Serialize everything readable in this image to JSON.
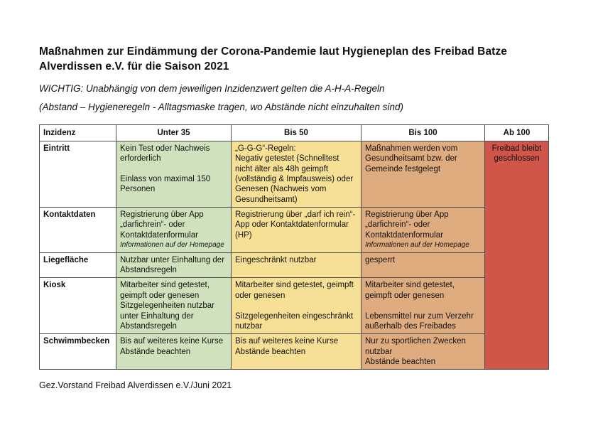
{
  "page": {
    "title": "Maßnahmen zur Eindämmung der Corona-Pandemie laut Hygieneplan des Freibad Batze Alverdissen e.V. für die Saison 2021",
    "important_line1": "WICHTIG: Unabhängig von dem jeweiligen Inzidenzwert gelten die A-H-A-Regeln",
    "important_line2": "(Abstand – Hygieneregeln - Alltagsmaske tragen, wo Abstände nicht einzuhalten sind)",
    "footer": "Gez.Vorstand Freibad Alverdissen e.V./Juni 2021"
  },
  "colors": {
    "green": "#cfe2bd",
    "yellow": "#f6e096",
    "orange": "#dfac80",
    "red": "#d0564a"
  },
  "table": {
    "headers": [
      "Inzidenz",
      "Unter 35",
      "Bis 50",
      "Bis 100",
      "Ab 100"
    ],
    "rows": [
      {
        "label": "Eintritt",
        "cells": [
          {
            "text": "Kein Test oder Nachweis erforderlich\n\nEinlass von maximal 150 Personen"
          },
          {
            "text": "„G-G-G“-Regeln:\nNegativ getestet (Schnelltest nicht älter als 48h geimpft (vollständig & Impfausweis) oder Genesen (Nachweis vom Gesundheitsamt)"
          },
          {
            "text": "Maßnahmen werden vom Gesundheitsamt bzw. der Gemeinde festgelegt"
          }
        ]
      },
      {
        "label": "Kontaktdaten",
        "cells": [
          {
            "text": "Registrierung über App „darfichrein“- oder Kontaktdatenformular",
            "note": "Informationen auf der Homepage"
          },
          {
            "text": "Registrierung über „darf ich rein“- App oder Kontaktdatenformular (HP)"
          },
          {
            "text": "Registrierung über App „darfichrein“- oder Kontaktdatenformular",
            "note": "Informationen auf der Homepage"
          }
        ]
      },
      {
        "label": "Liegefläche",
        "cells": [
          {
            "text": "Nutzbar unter Einhaltung der Abstandsregeln"
          },
          {
            "text": "Eingeschränkt nutzbar"
          },
          {
            "text": "gesperrt"
          }
        ]
      },
      {
        "label": "Kiosk",
        "cells": [
          {
            "text": "Mitarbeiter sind getestet, geimpft oder genesen\nSitzgelegenheiten nutzbar unter Einhaltung der Abstandsregeln"
          },
          {
            "text": "Mitarbeiter sind getestet, geimpft oder genesen\n\nSitzgelegenheiten eingeschränkt nutzbar"
          },
          {
            "text": "Mitarbeiter sind getestet, geimpft oder genesen\n\nLebensmittel nur zum Verzehr außerhalb des Freibades"
          }
        ]
      },
      {
        "label": "Schwimmbecken",
        "cells": [
          {
            "text": "Bis auf weiteres keine Kurse\nAbstände beachten"
          },
          {
            "text": "Bis auf weiteres keine Kurse\nAbstände beachten"
          },
          {
            "text": "Nur zu sportlichen Zwecken nutzbar\nAbstände beachten"
          }
        ]
      }
    ],
    "ab100_cell": {
      "text": "Freibad bleibt geschlossen"
    }
  }
}
